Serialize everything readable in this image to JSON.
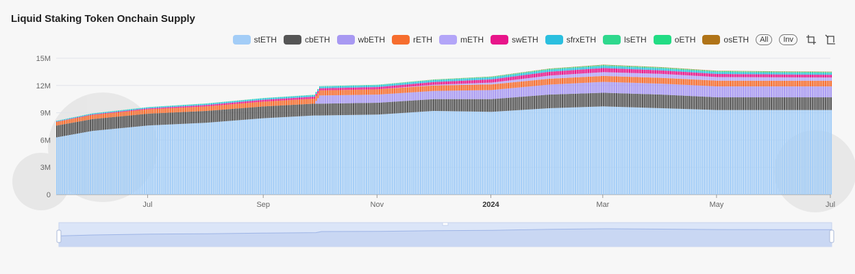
{
  "chart_data": {
    "type": "bar",
    "stacked": true,
    "title": "Liquid Staking Token Onchain Supply",
    "xlabel": "",
    "ylabel": "",
    "x_range": [
      "2023-05-13",
      "2024-07-01"
    ],
    "x_ticks": [
      {
        "date": "2023-07-01",
        "label": "Jul",
        "bold": false
      },
      {
        "date": "2023-09-01",
        "label": "Sep",
        "bold": false
      },
      {
        "date": "2023-11-01",
        "label": "Nov",
        "bold": false
      },
      {
        "date": "2024-01-01",
        "label": "2024",
        "bold": true
      },
      {
        "date": "2024-03-01",
        "label": "Mar",
        "bold": false
      },
      {
        "date": "2024-05-01",
        "label": "May",
        "bold": false
      },
      {
        "date": "2024-07-01",
        "label": "Jul",
        "bold": false
      }
    ],
    "y_ticks": [
      {
        "value": 0,
        "label": "0"
      },
      {
        "value": 3000000,
        "label": "3M"
      },
      {
        "value": 6000000,
        "label": "6M"
      },
      {
        "value": 9000000,
        "label": "9M"
      },
      {
        "value": 12000000,
        "label": "12M"
      },
      {
        "value": 15000000,
        "label": "15M"
      }
    ],
    "ylim": [
      0,
      15000000
    ],
    "grid": true,
    "legend_position": "top-right",
    "sample_dates": [
      "2023-05-13",
      "2023-06-01",
      "2023-07-01",
      "2023-08-01",
      "2023-09-01",
      "2023-09-28",
      "2023-10-01",
      "2023-11-01",
      "2023-12-01",
      "2024-01-01",
      "2024-02-01",
      "2024-03-01",
      "2024-04-01",
      "2024-05-01",
      "2024-06-01",
      "2024-07-01"
    ],
    "series": [
      {
        "name": "stETH",
        "color": "#a3cdf7",
        "values": [
          6300000,
          7000000,
          7600000,
          7900000,
          8400000,
          8700000,
          8700000,
          8800000,
          9200000,
          9100000,
          9500000,
          9700000,
          9500000,
          9300000,
          9300000,
          9300000
        ]
      },
      {
        "name": "cbETH",
        "color": "#555555",
        "values": [
          1300000,
          1300000,
          1300000,
          1300000,
          1300000,
          1300000,
          1300000,
          1300000,
          1300000,
          1400000,
          1500000,
          1500000,
          1500000,
          1400000,
          1400000,
          1400000
        ]
      },
      {
        "name": "wbETH",
        "color": "#a899f2",
        "values": [
          0,
          0,
          0,
          0,
          0,
          0,
          900000,
          900000,
          900000,
          1000000,
          1100000,
          1200000,
          1200000,
          1200000,
          1200000,
          1200000
        ]
      },
      {
        "name": "rETH",
        "color": "#f66d2e",
        "values": [
          400000,
          450000,
          480000,
          500000,
          530000,
          550000,
          560000,
          580000,
          600000,
          620000,
          640000,
          650000,
          640000,
          630000,
          620000,
          620000
        ]
      },
      {
        "name": "mETH",
        "color": "#b3a5f8",
        "values": [
          0,
          0,
          0,
          0,
          0,
          0,
          0,
          0,
          80000,
          200000,
          350000,
          420000,
          440000,
          400000,
          380000,
          360000
        ]
      },
      {
        "name": "swETH",
        "color": "#e8158a",
        "values": [
          30000,
          60000,
          100000,
          150000,
          200000,
          220000,
          230000,
          250000,
          300000,
          350000,
          420000,
          450000,
          380000,
          340000,
          320000,
          300000
        ]
      },
      {
        "name": "sfrxETH",
        "color": "#2bbfdf",
        "values": [
          80000,
          100000,
          120000,
          140000,
          160000,
          170000,
          180000,
          190000,
          200000,
          210000,
          220000,
          220000,
          210000,
          200000,
          190000,
          190000
        ]
      },
      {
        "name": "lsETH",
        "color": "#2fd88d",
        "values": [
          0,
          0,
          0,
          0,
          0,
          10000,
          20000,
          30000,
          40000,
          50000,
          60000,
          70000,
          70000,
          70000,
          70000,
          70000
        ]
      },
      {
        "name": "oETH",
        "color": "#22dc84",
        "values": [
          10000,
          20000,
          20000,
          30000,
          30000,
          30000,
          30000,
          30000,
          30000,
          40000,
          40000,
          40000,
          40000,
          40000,
          40000,
          40000
        ]
      },
      {
        "name": "osETH",
        "color": "#b07418",
        "values": [
          0,
          0,
          0,
          0,
          0,
          0,
          0,
          0,
          10000,
          20000,
          30000,
          40000,
          40000,
          40000,
          40000,
          40000
        ]
      }
    ]
  },
  "legend": {
    "all_label": "All",
    "inv_label": "Inv",
    "zoom_icon": "crop-icon",
    "reset_icon": "crop-reset-icon"
  }
}
